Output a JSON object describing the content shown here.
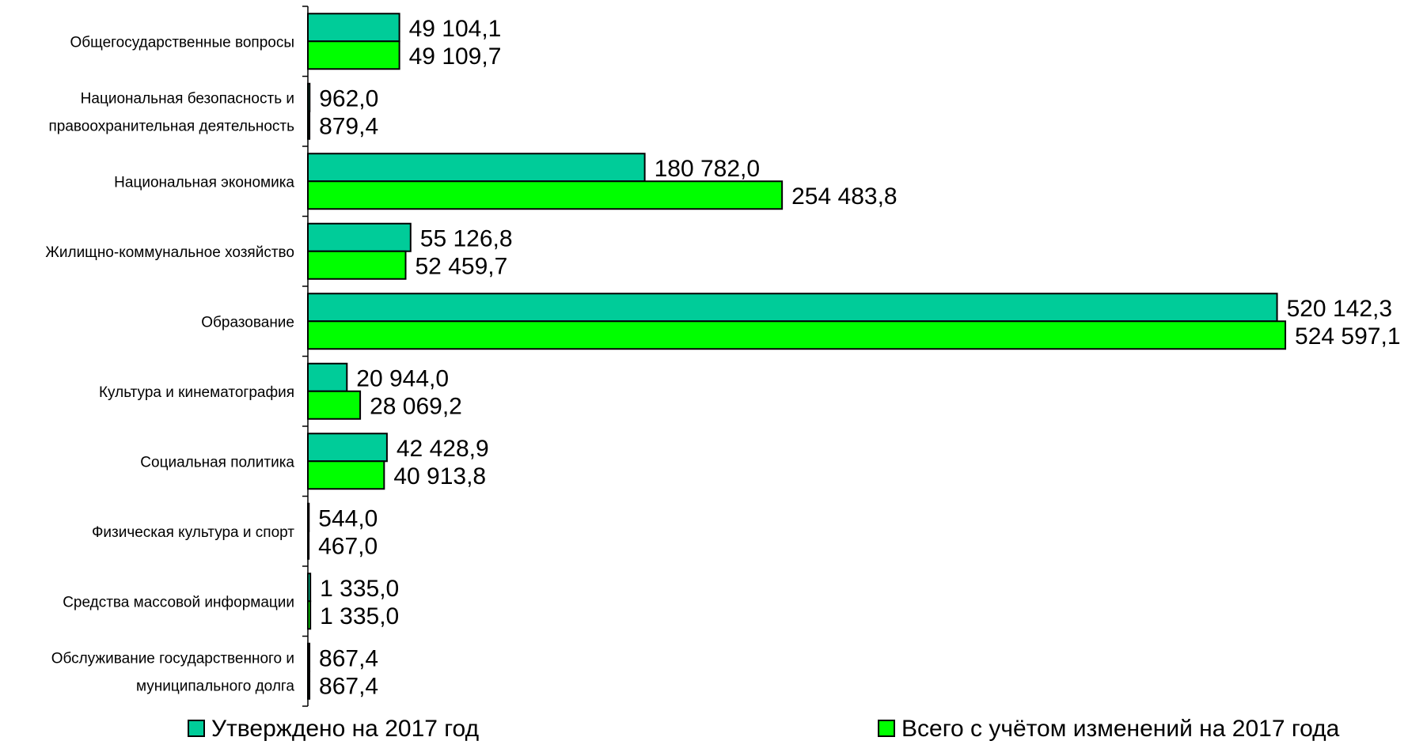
{
  "chart_data": {
    "type": "bar",
    "orientation": "horizontal",
    "title": "",
    "xlabel": "",
    "ylabel": "",
    "xlim": [
      0,
      525000
    ],
    "grid": false,
    "legend_position": "bottom",
    "categories": [
      [
        "Общегосударственные вопросы"
      ],
      [
        "Национальная безопасность и",
        "правоохранительная деятельность"
      ],
      [
        "Национальная экономика"
      ],
      [
        "Жилищно-коммунальное хозяйство"
      ],
      [
        "Образование"
      ],
      [
        "Культура и кинематография"
      ],
      [
        "Социальная политика"
      ],
      [
        "Физическая культура и спорт"
      ],
      [
        "Средства массовой информации"
      ],
      [
        "Обслуживание государственного и",
        "муниципального долга"
      ]
    ],
    "series": [
      {
        "name": "Утверждено на 2017 год",
        "color": "#00CC99",
        "values": [
          49104.1,
          962.0,
          180782.0,
          55126.8,
          520142.3,
          20944.0,
          42428.9,
          544.0,
          1335.0,
          867.4
        ],
        "labels": [
          "49 104,1",
          "962,0",
          "180 782,0",
          "55 126,8",
          "520 142,3",
          "20 944,0",
          "42 428,9",
          "544,0",
          "1 335,0",
          "867,4"
        ]
      },
      {
        "name": "Всего с учётом изменений на 2017 года",
        "color": "#00FF00",
        "values": [
          49109.7,
          879.4,
          254483.8,
          52459.7,
          524597.1,
          28069.2,
          40913.8,
          467.0,
          1335.0,
          867.4
        ],
        "labels": [
          "49 109,7",
          "879,4",
          "254 483,8",
          "52 459,7",
          "524 597,1",
          "28 069,2",
          "40 913,8",
          "467,0",
          "1 335,0",
          "867,4"
        ]
      }
    ]
  }
}
